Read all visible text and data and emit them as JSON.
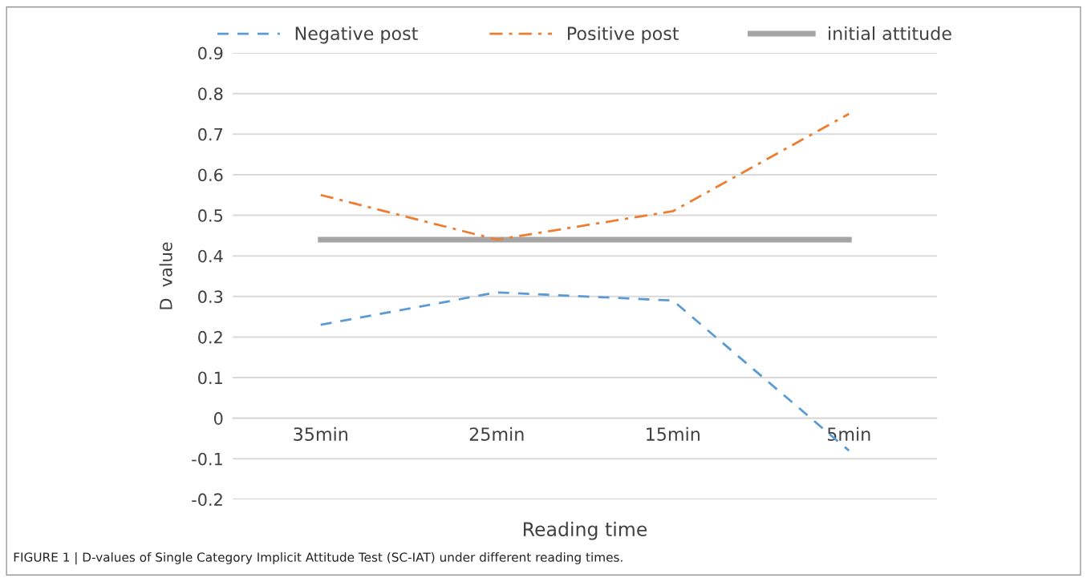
{
  "chart_data": {
    "type": "line",
    "xlabel": "Reading time",
    "ylabel": "D  value",
    "categories": [
      "35min",
      "25min",
      "15min",
      "5min"
    ],
    "series": [
      {
        "name": "Negative post",
        "color": "#5b9bd5",
        "values": [
          0.23,
          0.31,
          0.29,
          -0.08
        ],
        "line_style": "dashed"
      },
      {
        "name": "Positive post",
        "color": "#ed7d31",
        "values": [
          0.55,
          0.44,
          0.51,
          0.75
        ],
        "line_style": "dashdot"
      },
      {
        "name": "initial attitude",
        "color": "#a5a5a5",
        "values": [
          0.44,
          0.44,
          0.44,
          0.44
        ],
        "line_style": "solid"
      }
    ],
    "ylim": [
      -0.2,
      0.9
    ],
    "yticks": [
      -0.2,
      -0.1,
      0,
      0.1,
      0.2,
      0.3,
      0.4,
      0.5,
      0.6,
      0.7,
      0.8,
      0.9
    ],
    "grid": "y",
    "legend": "top",
    "marker": "none",
    "annotations": [
      "FIGURE 1 | D-values of Single Category Implicit Attitude Test (SC-IAT) under different reading times."
    ]
  }
}
